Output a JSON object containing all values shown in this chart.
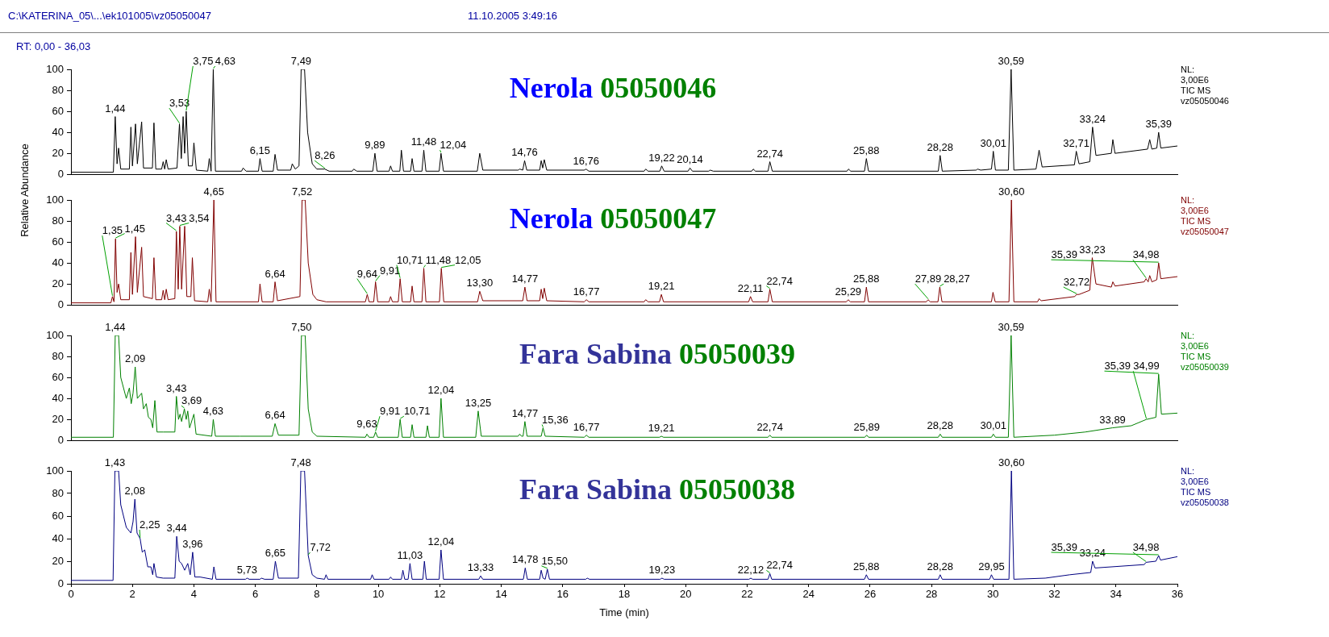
{
  "chart_data": [
    {
      "type": "line",
      "title": "Nerola 05050046",
      "ylabel": "Relative Abundance",
      "color": "#000000",
      "marker": "none",
      "tick_labels": "y",
      "xlim": [
        0,
        36
      ],
      "xticks": [
        0,
        2,
        4,
        6,
        8,
        10,
        12,
        14,
        16,
        18,
        20,
        22,
        24,
        26,
        28,
        30,
        32,
        34,
        36
      ],
      "ylim": [
        0,
        100
      ],
      "yticks": [
        0,
        20,
        40,
        60,
        80,
        100
      ],
      "x": [
        0,
        1.38,
        1.44,
        1.5,
        1.55,
        1.62,
        1.9,
        1.95,
        2.0,
        2.1,
        2.16,
        2.3,
        2.36,
        2.65,
        2.7,
        2.76,
        2.95,
        3.0,
        3.05,
        3.1,
        3.16,
        3.45,
        3.53,
        3.59,
        3.65,
        3.7,
        3.75,
        3.82,
        3.95,
        4.0,
        4.08,
        4.45,
        4.5,
        4.56,
        4.63,
        4.7,
        5.55,
        5.6,
        5.7,
        6.1,
        6.15,
        6.22,
        6.58,
        6.64,
        6.72,
        7.15,
        7.2,
        7.3,
        7.42,
        7.49,
        7.6,
        7.7,
        7.85,
        8.0,
        8.26,
        8.4,
        9.15,
        9.2,
        9.3,
        9.82,
        9.89,
        9.96,
        10.35,
        10.4,
        10.46,
        10.7,
        10.75,
        10.82,
        11.05,
        11.1,
        11.16,
        11.42,
        11.48,
        11.55,
        11.98,
        12.04,
        12.12,
        13.22,
        13.3,
        13.4,
        14.55,
        14.6,
        14.7,
        14.76,
        14.83,
        15.25,
        15.3,
        15.35,
        15.4,
        15.48,
        16.7,
        16.76,
        16.85,
        18.65,
        18.7,
        18.78,
        19.16,
        19.22,
        19.3,
        20.08,
        20.14,
        20.22,
        20.75,
        20.8,
        20.9,
        22.15,
        22.2,
        22.27,
        22.68,
        22.74,
        22.82,
        25.25,
        25.3,
        25.37,
        25.82,
        25.88,
        25.95,
        28.22,
        28.28,
        28.35,
        29.45,
        29.5,
        29.6,
        29.95,
        30.01,
        30.08,
        30.5,
        30.59,
        30.68,
        31.4,
        31.5,
        31.6,
        32.65,
        32.71,
        32.8,
        33.15,
        33.24,
        33.35,
        33.85,
        33.9,
        33.97,
        35.03,
        35.1,
        35.17,
        35.33,
        35.39,
        35.46,
        36
      ],
      "values": [
        2,
        2,
        55,
        10,
        25,
        5,
        5,
        45,
        8,
        48,
        10,
        50,
        6,
        6,
        49,
        5,
        5,
        12,
        5,
        14,
        5,
        6,
        48,
        15,
        55,
        20,
        60,
        8,
        8,
        30,
        4,
        3,
        15,
        3,
        100,
        3,
        3,
        6,
        3,
        3,
        15,
        3,
        3,
        19,
        4,
        4,
        10,
        5,
        8,
        100,
        100,
        40,
        10,
        5,
        5,
        3,
        3,
        5,
        3,
        3,
        20,
        3,
        3,
        8,
        3,
        3,
        23,
        3,
        3,
        15,
        3,
        3,
        23,
        3,
        3,
        20,
        3,
        3,
        20,
        4,
        4,
        5,
        4,
        13,
        4,
        4,
        13,
        6,
        14,
        4,
        4,
        5,
        3,
        3,
        5,
        3,
        3,
        8,
        3,
        3,
        6,
        3,
        3,
        4,
        3,
        3,
        5,
        3,
        3,
        12,
        3,
        3,
        5,
        3,
        3,
        15,
        3,
        3,
        18,
        3,
        4,
        5,
        4,
        5,
        22,
        4,
        4,
        100,
        4,
        5,
        23,
        7,
        9,
        22,
        10,
        12,
        45,
        18,
        20,
        33,
        20,
        24,
        33,
        24,
        25,
        40,
        25,
        27
      ],
      "annotations": [
        "C:\\KATERINA_05\\...\\ek101005\\vz05050047",
        "11.10.2005 3:49:16",
        "RT: 0,00 - 36,03",
        "NL:\n3,00E6\nTIC  MS\nvz05050046",
        {
          "text": "1,44",
          "x": 1.44,
          "y": 55
        },
        {
          "text": "3,53",
          "x": 3.53,
          "y": 48
        },
        {
          "text": "3,75",
          "x": 3.75,
          "y": 60
        },
        {
          "text": "4,63",
          "x": 4.63,
          "y": 100
        },
        {
          "text": "6,15",
          "x": 6.15,
          "y": 15
        },
        {
          "text": "7,49",
          "x": 7.49,
          "y": 100
        },
        {
          "text": "8,26",
          "x": 8.26,
          "y": 5
        },
        {
          "text": "9,89",
          "x": 9.89,
          "y": 20
        },
        {
          "text": "11,48",
          "x": 11.48,
          "y": 23
        },
        {
          "text": "12,04",
          "x": 12.04,
          "y": 20
        },
        {
          "text": "14,76",
          "x": 14.76,
          "y": 13
        },
        {
          "text": "16,76",
          "x": 16.76,
          "y": 5
        },
        {
          "text": "19,22",
          "x": 19.22,
          "y": 8
        },
        {
          "text": "20,14",
          "x": 20.14,
          "y": 6
        },
        {
          "text": "22,74",
          "x": 22.74,
          "y": 12
        },
        {
          "text": "25,88",
          "x": 25.88,
          "y": 15
        },
        {
          "text": "28,28",
          "x": 28.28,
          "y": 18
        },
        {
          "text": "30,01",
          "x": 30.01,
          "y": 22
        },
        {
          "text": "30,59",
          "x": 30.59,
          "y": 100
        },
        {
          "text": "32,71",
          "x": 32.71,
          "y": 22
        },
        {
          "text": "33,24",
          "x": 33.24,
          "y": 45
        },
        {
          "text": "35,39",
          "x": 35.39,
          "y": 40
        }
      ]
    },
    {
      "type": "line",
      "title": "Nerola 05050047",
      "color": "#800000",
      "marker": "none",
      "tick_labels": "y",
      "xlim": [
        0,
        36
      ],
      "xticks": [
        0,
        2,
        4,
        6,
        8,
        10,
        12,
        14,
        16,
        18,
        20,
        22,
        24,
        26,
        28,
        30,
        32,
        34,
        36
      ],
      "ylim": [
        0,
        100
      ],
      "yticks": [
        0,
        20,
        40,
        60,
        80,
        100
      ],
      "x": [
        0,
        1.3,
        1.35,
        1.4,
        1.45,
        1.5,
        1.55,
        1.62,
        1.9,
        1.95,
        2.0,
        2.1,
        2.16,
        2.3,
        2.36,
        2.65,
        2.7,
        2.76,
        2.95,
        3.0,
        3.05,
        3.1,
        3.16,
        3.38,
        3.43,
        3.49,
        3.54,
        3.6,
        3.7,
        3.77,
        3.9,
        3.95,
        4.02,
        4.45,
        4.5,
        4.56,
        4.65,
        4.72,
        6.1,
        6.15,
        6.22,
        6.58,
        6.64,
        6.72,
        7.45,
        7.52,
        7.62,
        7.72,
        7.87,
        8.0,
        8.3,
        9.58,
        9.64,
        9.7,
        9.85,
        9.91,
        9.98,
        10.35,
        10.4,
        10.46,
        10.65,
        10.71,
        10.78,
        11.05,
        11.1,
        11.16,
        11.42,
        11.48,
        11.55,
        11.99,
        12.05,
        12.13,
        13.23,
        13.3,
        13.4,
        14.7,
        14.77,
        14.84,
        15.25,
        15.3,
        15.35,
        15.4,
        15.48,
        16.7,
        16.77,
        16.85,
        18.65,
        18.7,
        18.78,
        19.15,
        19.21,
        19.28,
        22.05,
        22.11,
        22.18,
        22.68,
        22.74,
        22.82,
        25.23,
        25.29,
        25.36,
        25.82,
        25.88,
        25.95,
        27.83,
        27.89,
        27.96,
        28.21,
        28.27,
        28.34,
        29.95,
        30.0,
        30.07,
        30.52,
        30.6,
        30.68,
        31.45,
        31.5,
        31.57,
        32.66,
        32.72,
        32.8,
        33.15,
        33.23,
        33.35,
        33.85,
        33.9,
        33.97,
        34.92,
        34.98,
        35.05,
        35.1,
        35.17,
        35.33,
        35.39,
        35.46,
        36
      ],
      "values": [
        2,
        2,
        8,
        3,
        63,
        12,
        20,
        5,
        5,
        50,
        10,
        65,
        12,
        55,
        8,
        6,
        45,
        5,
        5,
        14,
        5,
        15,
        5,
        6,
        70,
        15,
        75,
        15,
        75,
        8,
        8,
        45,
        4,
        3,
        15,
        3,
        100,
        3,
        3,
        20,
        3,
        3,
        22,
        4,
        8,
        100,
        100,
        40,
        10,
        5,
        3,
        3,
        10,
        3,
        3,
        22,
        3,
        3,
        8,
        3,
        3,
        25,
        3,
        3,
        18,
        3,
        3,
        35,
        3,
        3,
        35,
        3,
        3,
        13,
        4,
        4,
        17,
        4,
        4,
        15,
        6,
        16,
        4,
        3,
        5,
        3,
        3,
        5,
        3,
        3,
        10,
        3,
        3,
        8,
        3,
        3,
        15,
        3,
        3,
        5,
        3,
        3,
        17,
        3,
        3,
        5,
        3,
        3,
        17,
        3,
        3,
        12,
        3,
        3,
        100,
        3,
        3,
        6,
        4,
        8,
        10,
        10,
        14,
        45,
        20,
        17,
        22,
        18,
        22,
        25,
        22,
        28,
        22,
        24,
        40,
        25,
        27
      ],
      "annotations": [
        "NL:\n3,00E6\nTIC  MS\nvz05050047",
        {
          "text": "1,35",
          "x": 1.35,
          "y": 8
        },
        {
          "text": "1,45",
          "x": 1.45,
          "y": 63
        },
        {
          "text": "3,43",
          "x": 3.43,
          "y": 70
        },
        {
          "text": "3,54",
          "x": 3.54,
          "y": 75
        },
        {
          "text": "4,65",
          "x": 4.65,
          "y": 100
        },
        {
          "text": "6,64",
          "x": 6.64,
          "y": 22
        },
        {
          "text": "7,52",
          "x": 7.52,
          "y": 100
        },
        {
          "text": "9,64",
          "x": 9.64,
          "y": 10
        },
        {
          "text": "9,91",
          "x": 9.91,
          "y": 22
        },
        {
          "text": "10,71",
          "x": 10.71,
          "y": 25
        },
        {
          "text": "11,48",
          "x": 11.48,
          "y": 35
        },
        {
          "text": "12,05",
          "x": 12.05,
          "y": 35
        },
        {
          "text": "13,30",
          "x": 13.3,
          "y": 13
        },
        {
          "text": "14,77",
          "x": 14.77,
          "y": 17
        },
        {
          "text": "16,77",
          "x": 16.77,
          "y": 5
        },
        {
          "text": "19,21",
          "x": 19.21,
          "y": 10
        },
        {
          "text": "22,11",
          "x": 22.11,
          "y": 8
        },
        {
          "text": "22,74",
          "x": 22.74,
          "y": 15
        },
        {
          "text": "25,29",
          "x": 25.29,
          "y": 5
        },
        {
          "text": "25,88",
          "x": 25.88,
          "y": 17
        },
        {
          "text": "27,89",
          "x": 27.89,
          "y": 5
        },
        {
          "text": "28,27",
          "x": 28.27,
          "y": 17
        },
        {
          "text": "30,60",
          "x": 30.6,
          "y": 100
        },
        {
          "text": "32,72",
          "x": 32.72,
          "y": 10
        },
        {
          "text": "33,23",
          "x": 33.23,
          "y": 45
        },
        {
          "text": "34,98",
          "x": 34.98,
          "y": 25
        },
        {
          "text": "35,39",
          "x": 35.39,
          "y": 40
        }
      ]
    },
    {
      "type": "line",
      "title": "Fara Sabina 05050039",
      "color": "#008000",
      "marker": "none",
      "tick_labels": "y",
      "xlim": [
        0,
        36
      ],
      "xticks": [
        0,
        2,
        4,
        6,
        8,
        10,
        12,
        14,
        16,
        18,
        20,
        22,
        24,
        26,
        28,
        30,
        32,
        34,
        36
      ],
      "ylim": [
        0,
        100
      ],
      "yticks": [
        0,
        20,
        40,
        60,
        80,
        100
      ],
      "x": [
        0,
        1.38,
        1.44,
        1.55,
        1.62,
        1.8,
        1.9,
        1.96,
        2.02,
        2.09,
        2.16,
        2.3,
        2.36,
        2.45,
        2.52,
        2.6,
        2.66,
        2.73,
        2.8,
        3.0,
        3.38,
        3.43,
        3.5,
        3.55,
        3.6,
        3.69,
        3.75,
        3.8,
        3.86,
        4.0,
        4.07,
        4.58,
        4.63,
        4.7,
        5.5,
        6.55,
        6.64,
        6.75,
        7.42,
        7.5,
        7.62,
        7.72,
        7.85,
        8.0,
        9.58,
        9.63,
        9.7,
        9.85,
        9.91,
        9.98,
        10.65,
        10.71,
        10.78,
        11.05,
        11.1,
        11.16,
        11.55,
        11.6,
        11.66,
        11.98,
        12.04,
        12.12,
        13.17,
        13.25,
        13.35,
        14.55,
        14.6,
        14.66,
        14.71,
        14.77,
        14.84,
        15.3,
        15.36,
        15.43,
        16.7,
        16.77,
        16.85,
        19.15,
        19.21,
        19.28,
        22.68,
        22.74,
        22.8,
        25.83,
        25.89,
        25.95,
        28.22,
        28.28,
        28.35,
        29.95,
        30.01,
        30.08,
        30.5,
        30.59,
        30.68,
        32.0,
        33.0,
        33.89,
        34.5,
        34.99,
        35.3,
        35.39,
        35.48,
        36
      ],
      "values": [
        3,
        3,
        100,
        100,
        60,
        40,
        50,
        35,
        45,
        70,
        40,
        45,
        30,
        35,
        22,
        20,
        12,
        38,
        8,
        8,
        8,
        42,
        20,
        25,
        18,
        30,
        20,
        28,
        12,
        25,
        6,
        4,
        20,
        4,
        4,
        4,
        16,
        5,
        5,
        100,
        100,
        30,
        8,
        4,
        3,
        6,
        3,
        3,
        8,
        3,
        3,
        20,
        3,
        3,
        15,
        3,
        3,
        14,
        3,
        3,
        40,
        3,
        3,
        28,
        4,
        4,
        6,
        4,
        4,
        18,
        4,
        4,
        12,
        4,
        3,
        5,
        3,
        3,
        4,
        3,
        3,
        5,
        3,
        3,
        5,
        3,
        3,
        6,
        3,
        3,
        6,
        3,
        3,
        100,
        3,
        5,
        8,
        12,
        14,
        20,
        22,
        63,
        25,
        26
      ],
      "annotations": [
        "NL:\n3,00E6\nTIC  MS\nvz05050039",
        {
          "text": "1,44",
          "x": 1.44,
          "y": 100
        },
        {
          "text": "2,09",
          "x": 2.09,
          "y": 70
        },
        {
          "text": "3,43",
          "x": 3.43,
          "y": 42
        },
        {
          "text": "3,69",
          "x": 3.69,
          "y": 30
        },
        {
          "text": "4,63",
          "x": 4.63,
          "y": 20
        },
        {
          "text": "6,64",
          "x": 6.64,
          "y": 16
        },
        {
          "text": "7,50",
          "x": 7.5,
          "y": 100
        },
        {
          "text": "9,63",
          "x": 9.63,
          "y": 6
        },
        {
          "text": "9,91",
          "x": 9.91,
          "y": 8
        },
        {
          "text": "10,71",
          "x": 10.71,
          "y": 20
        },
        {
          "text": "12,04",
          "x": 12.04,
          "y": 40
        },
        {
          "text": "13,25",
          "x": 13.25,
          "y": 28
        },
        {
          "text": "14,77",
          "x": 14.77,
          "y": 18
        },
        {
          "text": "15,36",
          "x": 15.36,
          "y": 12
        },
        {
          "text": "16,77",
          "x": 16.77,
          "y": 5
        },
        {
          "text": "19,21",
          "x": 19.21,
          "y": 4
        },
        {
          "text": "22,74",
          "x": 22.74,
          "y": 5
        },
        {
          "text": "25,89",
          "x": 25.89,
          "y": 5
        },
        {
          "text": "28,28",
          "x": 28.28,
          "y": 6
        },
        {
          "text": "30,01",
          "x": 30.01,
          "y": 6
        },
        {
          "text": "30,59",
          "x": 30.59,
          "y": 100
        },
        {
          "text": "33,89",
          "x": 33.89,
          "y": 12
        },
        {
          "text": "34,99",
          "x": 34.99,
          "y": 20
        },
        {
          "text": "35,39",
          "x": 35.39,
          "y": 63
        }
      ]
    },
    {
      "type": "line",
      "title": "Fara Sabina 05050038",
      "xlabel": "Time (min)",
      "color": "#000080",
      "marker": "none",
      "xlim": [
        0,
        36
      ],
      "xticks": [
        0,
        2,
        4,
        6,
        8,
        10,
        12,
        14,
        16,
        18,
        20,
        22,
        24,
        26,
        28,
        30,
        32,
        34,
        36
      ],
      "ylim": [
        0,
        100
      ],
      "yticks": [
        0,
        20,
        40,
        60,
        80,
        100
      ],
      "x": [
        0,
        1.37,
        1.43,
        1.55,
        1.62,
        1.8,
        1.95,
        2.02,
        2.08,
        2.15,
        2.25,
        2.32,
        2.4,
        2.5,
        2.6,
        2.66,
        2.7,
        2.78,
        3.0,
        3.38,
        3.44,
        3.52,
        3.6,
        3.7,
        3.8,
        3.88,
        3.96,
        4.03,
        4.2,
        4.6,
        4.65,
        4.72,
        5.68,
        5.73,
        5.8,
        6.15,
        6.2,
        6.3,
        6.58,
        6.65,
        6.75,
        7.4,
        7.48,
        7.6,
        7.72,
        7.85,
        8.0,
        8.25,
        8.3,
        8.36,
        9.75,
        9.8,
        9.86,
        10.35,
        10.4,
        10.46,
        10.75,
        10.8,
        10.86,
        10.97,
        11.03,
        11.1,
        11.45,
        11.5,
        11.56,
        11.98,
        12.04,
        12.12,
        13.27,
        13.33,
        13.4,
        14.72,
        14.78,
        14.85,
        15.25,
        15.3,
        15.36,
        15.43,
        15.5,
        15.57,
        16.75,
        16.8,
        16.87,
        19.17,
        19.23,
        19.3,
        22.06,
        22.12,
        22.18,
        22.68,
        22.74,
        22.8,
        25.82,
        25.88,
        25.95,
        28.22,
        28.28,
        28.35,
        29.89,
        29.95,
        30.02,
        30.52,
        30.6,
        30.68,
        31.7,
        32.5,
        33.18,
        33.24,
        33.32,
        34.92,
        34.98,
        35.3,
        35.39,
        35.45,
        36
      ],
      "values": [
        3,
        3,
        100,
        100,
        70,
        50,
        45,
        55,
        75,
        45,
        40,
        28,
        30,
        15,
        15,
        8,
        18,
        6,
        5,
        5,
        42,
        20,
        18,
        12,
        18,
        8,
        28,
        6,
        6,
        4,
        15,
        4,
        4,
        5,
        4,
        4,
        5,
        4,
        4,
        20,
        5,
        5,
        100,
        100,
        25,
        8,
        5,
        4,
        8,
        4,
        4,
        8,
        4,
        4,
        6,
        4,
        4,
        12,
        4,
        4,
        18,
        4,
        4,
        20,
        4,
        4,
        30,
        4,
        4,
        7,
        4,
        4,
        14,
        4,
        4,
        12,
        5,
        4,
        13,
        4,
        4,
        5,
        4,
        4,
        5,
        4,
        4,
        5,
        4,
        4,
        9,
        4,
        4,
        8,
        4,
        4,
        8,
        4,
        4,
        8,
        4,
        4,
        100,
        4,
        5,
        8,
        10,
        20,
        14,
        17,
        19,
        20,
        25,
        21,
        24
      ],
      "annotations": [
        "NL:\n3,00E6\nTIC  MS\nvz05050038",
        {
          "text": "1,43",
          "x": 1.43,
          "y": 100
        },
        {
          "text": "2,08",
          "x": 2.08,
          "y": 75
        },
        {
          "text": "2,25",
          "x": 2.25,
          "y": 40
        },
        {
          "text": "3,44",
          "x": 3.44,
          "y": 42
        },
        {
          "text": "3,96",
          "x": 3.96,
          "y": 28
        },
        {
          "text": "5,73",
          "x": 5.73,
          "y": 5
        },
        {
          "text": "6,65",
          "x": 6.65,
          "y": 20
        },
        {
          "text": "7,48",
          "x": 7.48,
          "y": 100
        },
        {
          "text": "7,72",
          "x": 7.72,
          "y": 25
        },
        {
          "text": "11,03",
          "x": 11.03,
          "y": 18
        },
        {
          "text": "12,04",
          "x": 12.04,
          "y": 30
        },
        {
          "text": "13,33",
          "x": 13.33,
          "y": 7
        },
        {
          "text": "14,78",
          "x": 14.78,
          "y": 14
        },
        {
          "text": "15,50",
          "x": 15.5,
          "y": 13
        },
        {
          "text": "19,23",
          "x": 19.23,
          "y": 5
        },
        {
          "text": "22,12",
          "x": 22.12,
          "y": 5
        },
        {
          "text": "22,74",
          "x": 22.74,
          "y": 9
        },
        {
          "text": "25,88",
          "x": 25.88,
          "y": 8
        },
        {
          "text": "28,28",
          "x": 28.28,
          "y": 8
        },
        {
          "text": "29,95",
          "x": 29.95,
          "y": 8
        },
        {
          "text": "30,60",
          "x": 30.6,
          "y": 100
        },
        {
          "text": "33,24",
          "x": 33.24,
          "y": 20
        },
        {
          "text": "34,98",
          "x": 34.98,
          "y": 19
        },
        {
          "text": "35,39",
          "x": 35.39,
          "y": 25
        }
      ]
    }
  ]
}
